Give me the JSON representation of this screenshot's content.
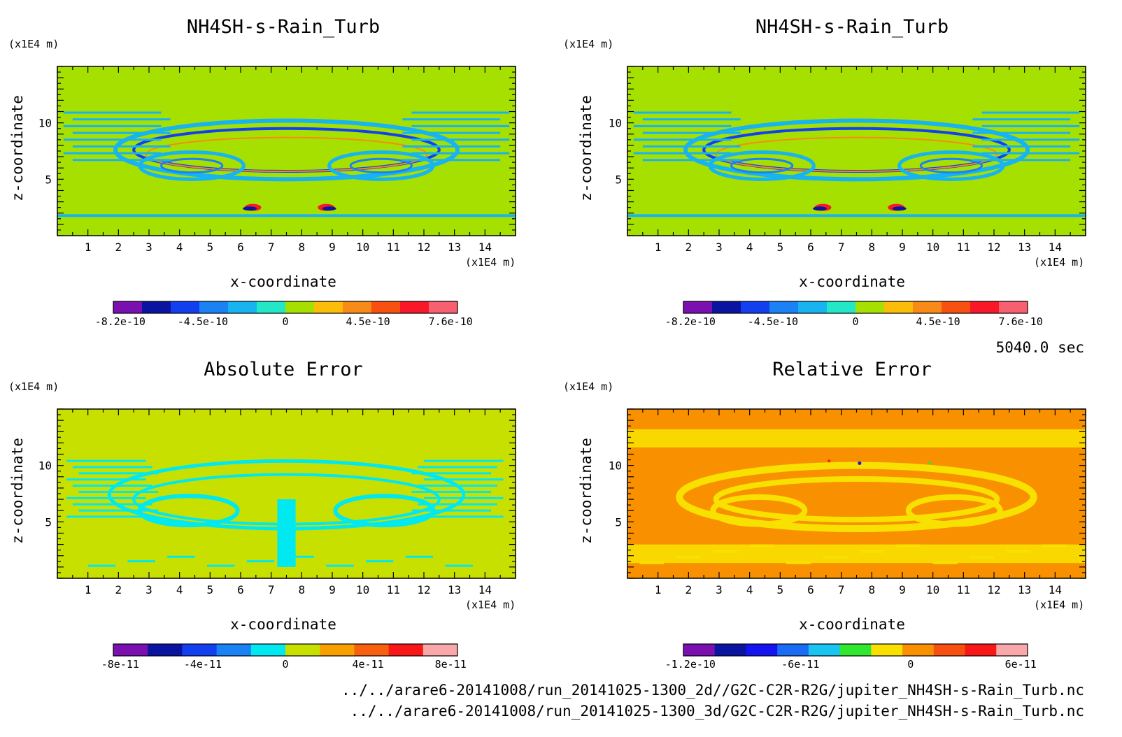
{
  "time_label": "5040.0 sec",
  "file_paths": [
    "../../arare6-20141008/run_20141025-1300_2d//G2C-C2R-R2G/jupiter_NH4SH-s-Rain_Turb.nc",
    "../../arare6-20141008/run_20141025-1300_3d/G2C-C2R-R2G/jupiter_NH4SH-s-Rain_Turb.nc"
  ],
  "chart_data": [
    {
      "type": "heatmap",
      "title": "NH4SH-s-Rain_Turb",
      "xlabel": "x-coordinate",
      "ylabel": "z-coordinate",
      "x_unit": "(x1E4 m)",
      "y_unit": "(x1E4 m)",
      "xlim": [
        0,
        15
      ],
      "ylim": [
        0,
        15
      ],
      "x_ticks": [
        1,
        2,
        3,
        4,
        5,
        6,
        7,
        8,
        9,
        10,
        11,
        12,
        13,
        14
      ],
      "y_ticks": [
        5,
        10
      ],
      "background_color": "#a6e000",
      "colorbar": {
        "colors": [
          "#7a10b0",
          "#0a14a0",
          "#1240f0",
          "#1a82f5",
          "#18b4f0",
          "#22e8c8",
          "#a6e000",
          "#fbbc0a",
          "#f88a18",
          "#f85010",
          "#f81828",
          "#f86070"
        ],
        "tick_labels": [
          "-8.2e-10",
          "-4.5e-10",
          "0",
          "4.5e-10",
          "7.6e-10"
        ]
      }
    },
    {
      "type": "heatmap",
      "title": "NH4SH-s-Rain_Turb",
      "xlabel": "x-coordinate",
      "ylabel": "z-coordinate",
      "x_unit": "(x1E4 m)",
      "y_unit": "(x1E4 m)",
      "xlim": [
        0,
        15
      ],
      "ylim": [
        0,
        15
      ],
      "x_ticks": [
        1,
        2,
        3,
        4,
        5,
        6,
        7,
        8,
        9,
        10,
        11,
        12,
        13,
        14
      ],
      "y_ticks": [
        5,
        10
      ],
      "background_color": "#a6e000",
      "colorbar": {
        "colors": [
          "#7a10b0",
          "#0a14a0",
          "#1240f0",
          "#1a82f5",
          "#18b4f0",
          "#22e8c8",
          "#a6e000",
          "#fbbc0a",
          "#f88a18",
          "#f85010",
          "#f81828",
          "#f86070"
        ],
        "tick_labels": [
          "-8.2e-10",
          "-4.5e-10",
          "0",
          "4.5e-10",
          "7.6e-10"
        ]
      }
    },
    {
      "type": "heatmap",
      "title": "Absolute Error",
      "xlabel": "x-coordinate",
      "ylabel": "z-coordinate",
      "x_unit": "(x1E4 m)",
      "y_unit": "(x1E4 m)",
      "xlim": [
        0,
        15
      ],
      "ylim": [
        0,
        15
      ],
      "x_ticks": [
        1,
        2,
        3,
        4,
        5,
        6,
        7,
        8,
        9,
        10,
        11,
        12,
        13,
        14
      ],
      "y_ticks": [
        5,
        10
      ],
      "background_color": "#c8e000",
      "colorbar": {
        "colors": [
          "#7a10b0",
          "#0a14a0",
          "#1240f0",
          "#1a82f5",
          "#00e8f0",
          "#c8e000",
          "#f8a000",
          "#f86010",
          "#f81818",
          "#f8a8a8"
        ],
        "tick_labels": [
          "-8e-11",
          "-4e-11",
          "0",
          "4e-11",
          "8e-11"
        ]
      }
    },
    {
      "type": "heatmap",
      "title": "Relative Error",
      "xlabel": "x-coordinate",
      "ylabel": "z-coordinate",
      "x_unit": "(x1E4 m)",
      "y_unit": "(x1E4 m)",
      "xlim": [
        0,
        15
      ],
      "ylim": [
        0,
        15
      ],
      "x_ticks": [
        1,
        2,
        3,
        4,
        5,
        6,
        7,
        8,
        9,
        10,
        11,
        12,
        13,
        14
      ],
      "y_ticks": [
        5,
        10
      ],
      "background_color": "#f89000",
      "colorbar": {
        "colors": [
          "#7a10b0",
          "#0a14a0",
          "#1414f0",
          "#1a6cf5",
          "#18c4f0",
          "#30e830",
          "#f8e000",
          "#f89000",
          "#f85010",
          "#f81818",
          "#f8a8a8"
        ],
        "tick_labels": [
          "-1.2e-10",
          "-6e-11",
          "0",
          "6e-11"
        ]
      }
    }
  ]
}
